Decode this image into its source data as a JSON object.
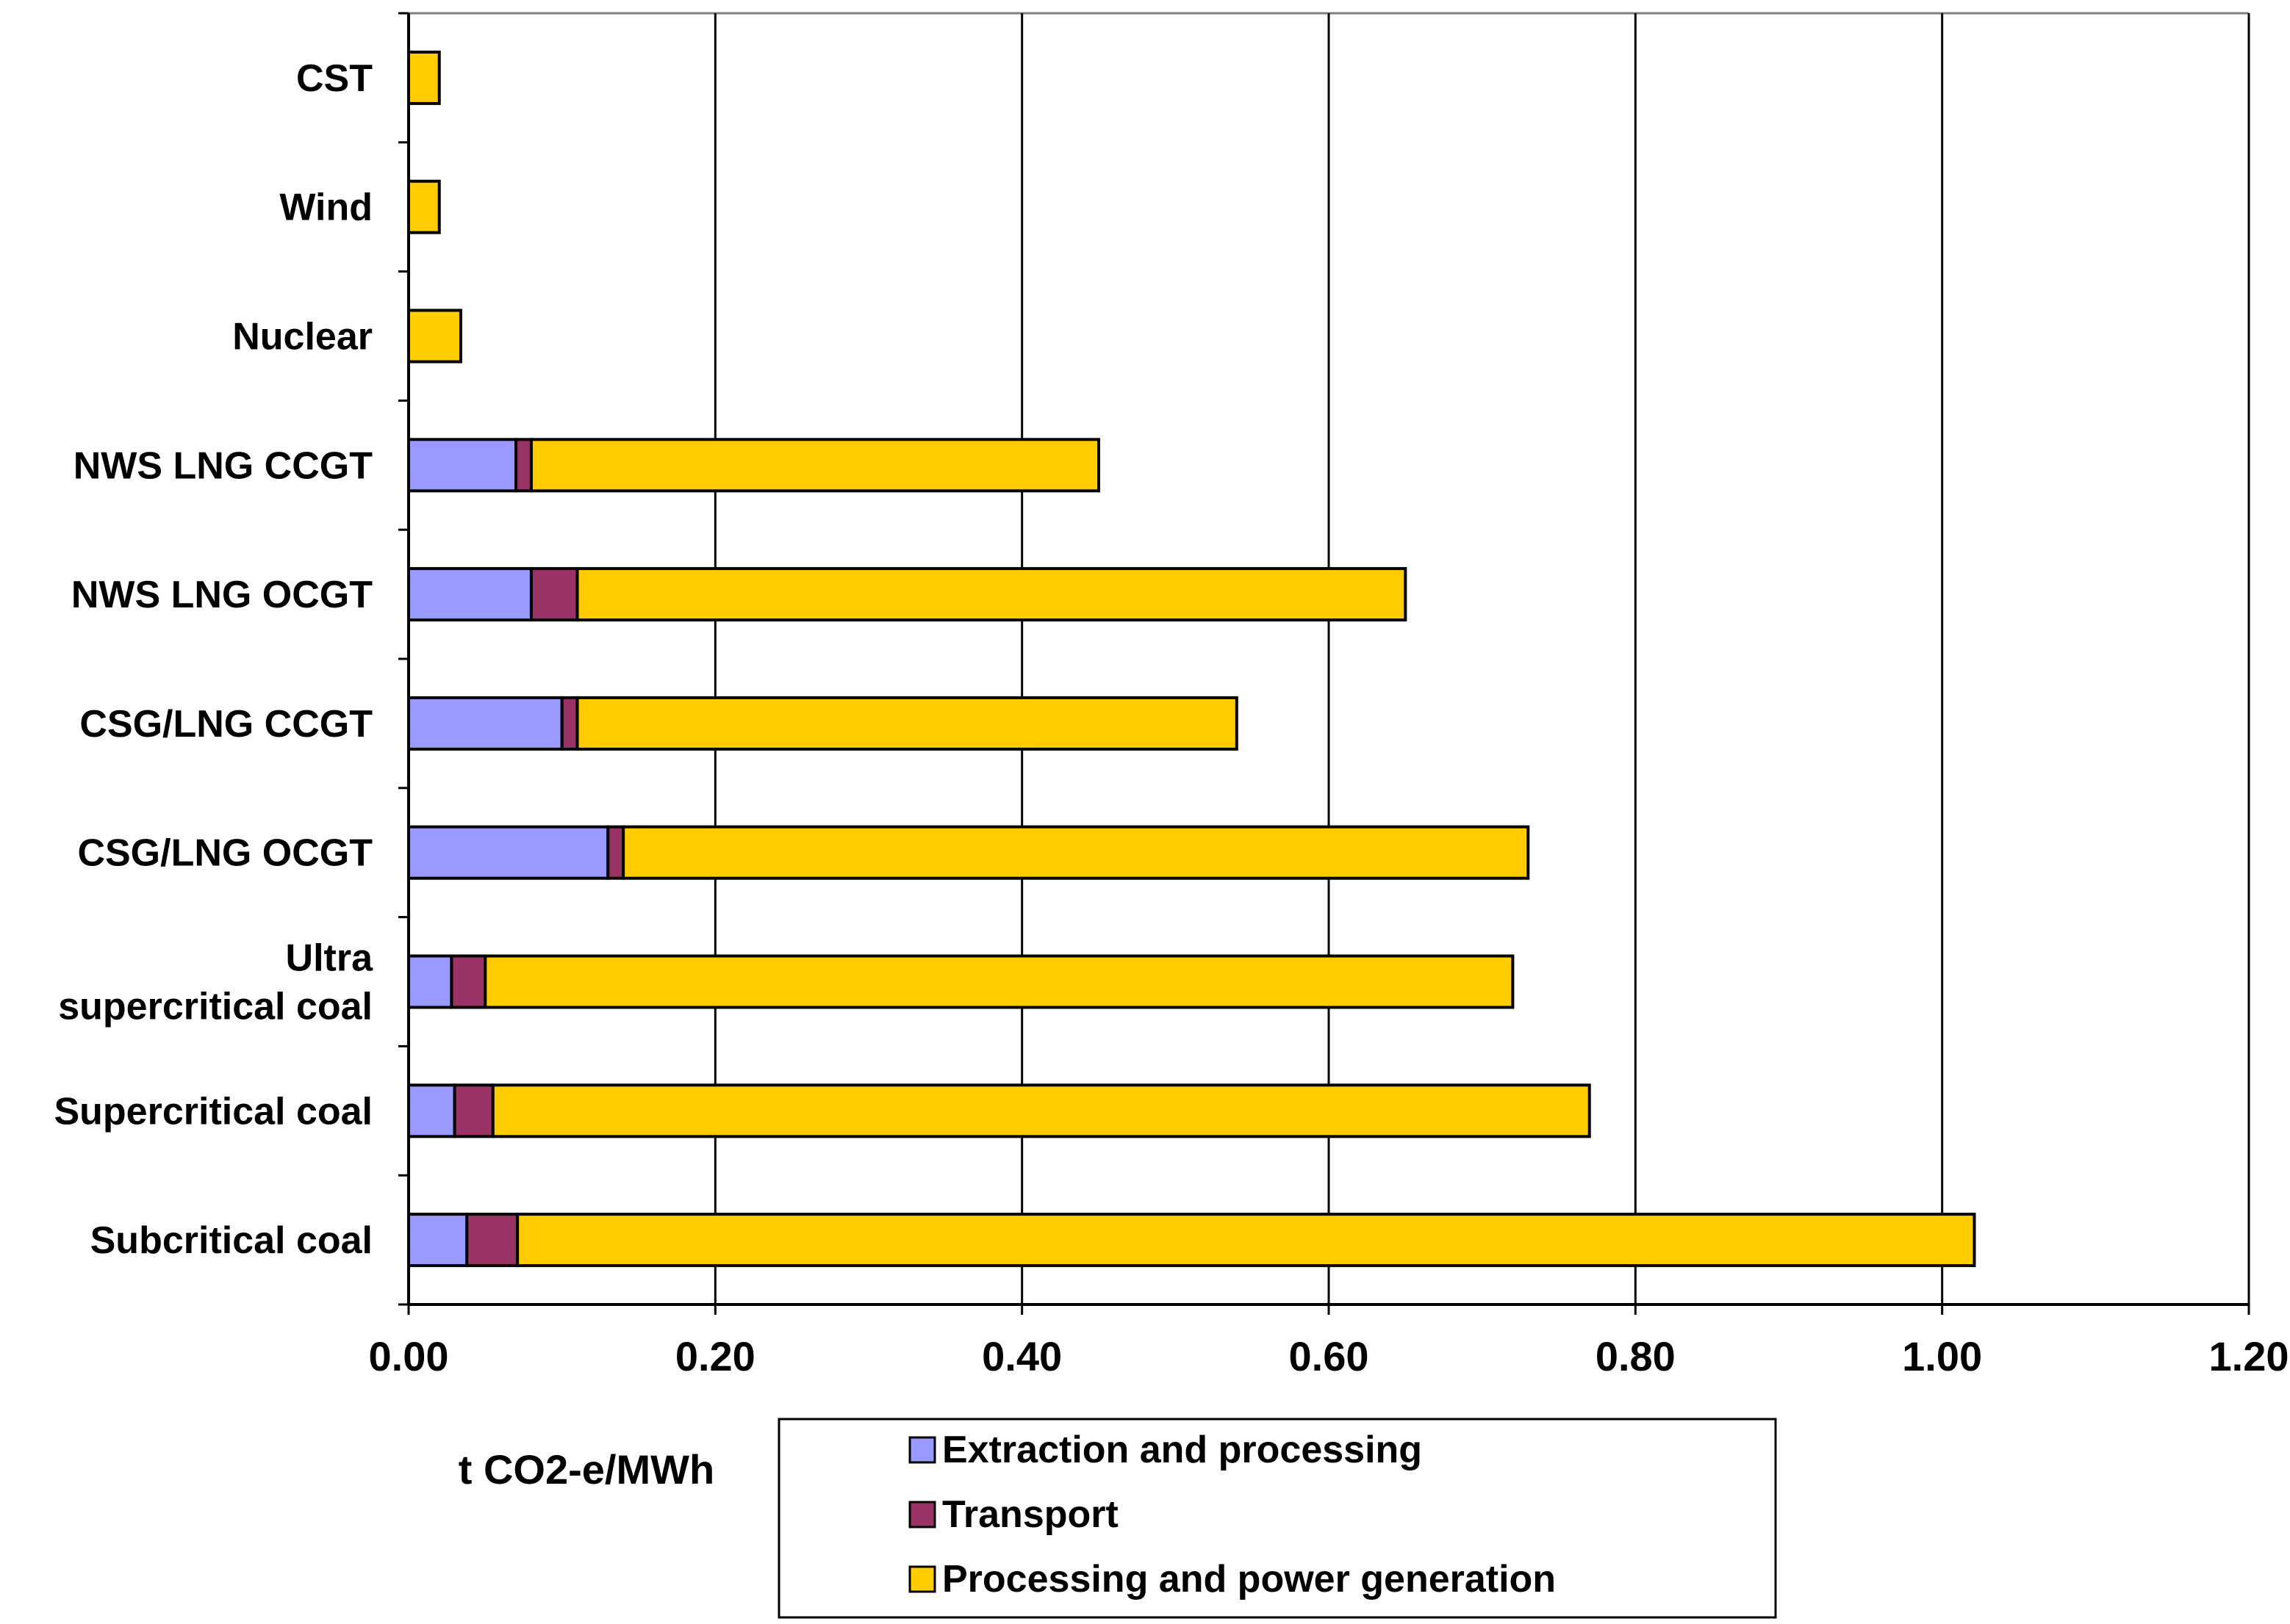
{
  "chart_data": {
    "type": "bar",
    "orientation": "horizontal",
    "stacked": true,
    "title": "",
    "xlabel": "t CO2-e/MWh",
    "ylabel": "",
    "xlim": [
      0,
      1.2
    ],
    "x_ticks": [
      0.0,
      0.2,
      0.4,
      0.6,
      0.8,
      1.0,
      1.2
    ],
    "x_tick_labels": [
      "0.00",
      "0.20",
      "0.40",
      "0.60",
      "0.80",
      "1.00",
      "1.20"
    ],
    "grid": "vertical",
    "legend_position": "bottom",
    "categories": [
      [
        "CST"
      ],
      [
        "Wind"
      ],
      [
        "Nuclear"
      ],
      [
        "NWS LNG  CCGT"
      ],
      [
        "NWS LNG  OCGT"
      ],
      [
        "CSG/LNG  CCGT"
      ],
      [
        "CSG/LNG  OCGT"
      ],
      [
        "Ultra",
        "supercritical coal"
      ],
      [
        "Supercritical coal"
      ],
      [
        "Subcritical coal"
      ]
    ],
    "series": [
      {
        "name": "Extraction and processing",
        "color": "#9999FF",
        "values": [
          0,
          0,
          0,
          0.07,
          0.08,
          0.1,
          0.13,
          0.028,
          0.03,
          0.038
        ]
      },
      {
        "name": "Transport",
        "color": "#993366",
        "values": [
          0,
          0,
          0,
          0.01,
          0.03,
          0.01,
          0.01,
          0.022,
          0.025,
          0.033
        ]
      },
      {
        "name": "Processing  and power generation",
        "color": "#FFCC00",
        "values": [
          0.02,
          0.02,
          0.034,
          0.37,
          0.54,
          0.43,
          0.59,
          0.67,
          0.715,
          0.95
        ]
      }
    ]
  }
}
